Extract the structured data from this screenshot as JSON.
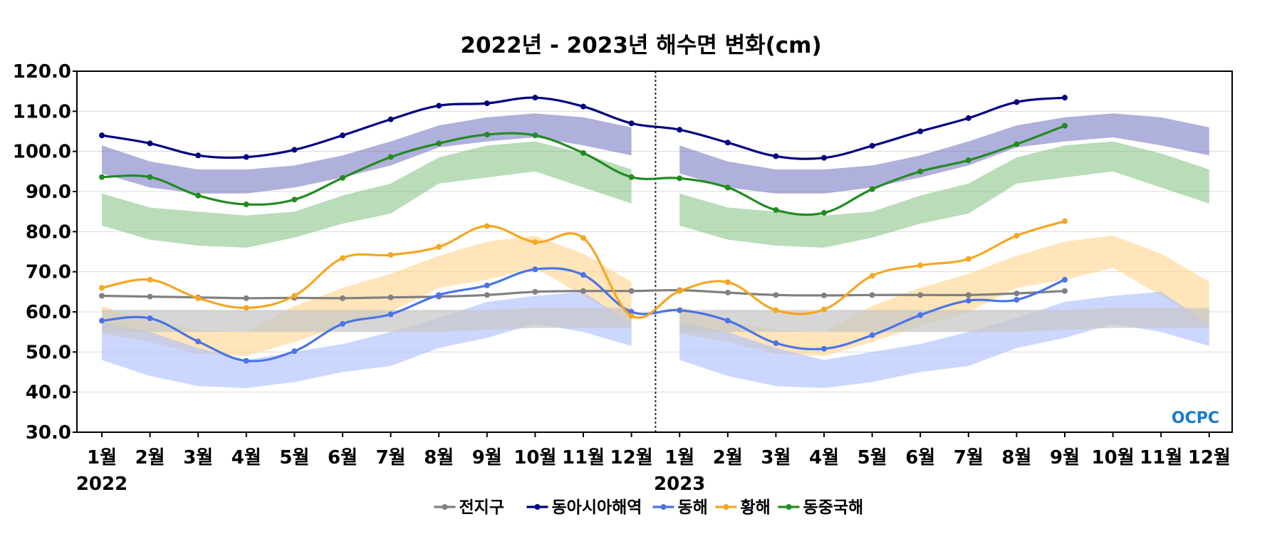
{
  "chart_data": {
    "type": "line",
    "title": "2022년 - 2023년 해수면 변화(cm)",
    "ylim": [
      30,
      120
    ],
    "yticks": [
      "30.0",
      "40.0",
      "50.0",
      "60.0",
      "70.0",
      "80.0",
      "90.0",
      "100.0",
      "110.0",
      "120.0"
    ],
    "categories": [
      "1월",
      "2월",
      "3월",
      "4월",
      "5월",
      "6월",
      "7월",
      "8월",
      "9월",
      "10월",
      "11월",
      "12월",
      "1월",
      "2월",
      "3월",
      "4월",
      "5월",
      "6월",
      "7월",
      "8월",
      "9월",
      "10월",
      "11월",
      "12월"
    ],
    "years": [
      {
        "label": "2022",
        "index": 0
      },
      {
        "label": "2023",
        "index": 12
      }
    ],
    "divider_after_index": 11,
    "grid": "horizontal",
    "legend_position": "bottom",
    "logo": "OCPC",
    "series": [
      {
        "name": "전지구",
        "color": "#808080",
        "values": [
          64.0,
          63.8,
          63.6,
          63.4,
          63.5,
          63.4,
          63.6,
          63.8,
          64.2,
          65.0,
          65.2,
          65.2,
          65.4,
          64.8,
          64.2,
          64.1,
          64.2,
          64.2,
          64.2,
          64.6,
          65.2,
          null,
          null,
          null
        ]
      },
      {
        "name": "동아시아해역",
        "color": "#000080",
        "values": [
          104.0,
          102.0,
          99.0,
          98.6,
          100.4,
          104.0,
          108.0,
          111.4,
          112.0,
          113.4,
          111.2,
          107.0,
          105.4,
          102.2,
          98.8,
          98.4,
          101.4,
          105.0,
          108.3,
          112.3,
          113.4,
          null,
          null,
          null
        ]
      },
      {
        "name": "동해",
        "color": "#4a74e6",
        "values": [
          57.8,
          58.4,
          52.6,
          47.8,
          50.2,
          57.0,
          59.4,
          64.2,
          66.6,
          70.6,
          69.2,
          60.0,
          60.4,
          57.8,
          52.2,
          50.8,
          54.2,
          59.2,
          62.8,
          63.0,
          68.0,
          null,
          null,
          null
        ]
      },
      {
        "name": "황해",
        "color": "#f5a623",
        "values": [
          66.0,
          68.0,
          63.4,
          61.0,
          64.0,
          73.4,
          74.2,
          76.2,
          81.4,
          77.4,
          78.4,
          59.0,
          65.2,
          67.4,
          60.4,
          60.6,
          69.0,
          71.6,
          73.2,
          79.0,
          82.6,
          null,
          null,
          null
        ]
      },
      {
        "name": "동중국해",
        "color": "#228b22",
        "values": [
          93.6,
          93.6,
          89.0,
          86.8,
          88.0,
          93.4,
          98.6,
          102.0,
          104.2,
          104.0,
          99.6,
          93.6,
          93.3,
          91.0,
          85.4,
          84.7,
          90.6,
          95.0,
          97.8,
          101.8,
          106.4,
          null,
          null,
          null
        ]
      }
    ],
    "bands": [
      {
        "series": "동아시아해역",
        "color": "#7070c0",
        "opacity": 0.55,
        "lower": [
          94.5,
          91.0,
          89.5,
          89.5,
          91.0,
          93.5,
          96.5,
          101.0,
          102.5,
          103.5,
          101.5,
          99.0
        ],
        "upper": [
          101.5,
          97.5,
          95.5,
          95.5,
          96.5,
          99.0,
          102.5,
          106.5,
          108.5,
          109.5,
          108.5,
          106.0
        ]
      },
      {
        "series": "동중국해",
        "color": "#80c080",
        "opacity": 0.55,
        "lower": [
          81.5,
          78.0,
          76.5,
          76.0,
          78.5,
          82.0,
          84.5,
          92.0,
          93.5,
          95.0,
          91.0,
          87.0
        ],
        "upper": [
          89.5,
          86.0,
          85.0,
          84.0,
          85.0,
          89.0,
          92.0,
          98.5,
          101.5,
          102.5,
          99.5,
          95.5
        ]
      },
      {
        "series": "황해",
        "color": "#ffd080",
        "opacity": 0.55,
        "lower": [
          54.5,
          52.5,
          49.5,
          49.0,
          52.5,
          56.5,
          60.0,
          66.0,
          68.0,
          71.0,
          64.0,
          57.0
        ],
        "upper": [
          61.5,
          57.5,
          55.5,
          55.0,
          61.5,
          66.0,
          69.5,
          74.0,
          77.5,
          79.0,
          74.5,
          67.5
        ]
      },
      {
        "series": "동해",
        "color": "#a8bcff",
        "opacity": 0.6,
        "lower": [
          48.0,
          44.0,
          41.5,
          41.0,
          42.5,
          45.0,
          46.5,
          51.0,
          53.5,
          57.0,
          55.0,
          51.5
        ],
        "upper": [
          57.5,
          55.0,
          51.0,
          48.0,
          50.0,
          52.0,
          55.0,
          58.5,
          62.5,
          64.0,
          65.0,
          57.0
        ]
      },
      {
        "series": "전지구",
        "color": "#c8c8c8",
        "opacity": 0.75,
        "lower": [
          55.0,
          55.0,
          55.0,
          55.0,
          55.0,
          55.0,
          55.0,
          55.0,
          55.5,
          56.0,
          56.0,
          56.0
        ],
        "upper": [
          60.5,
          60.5,
          60.5,
          60.5,
          60.5,
          60.5,
          60.5,
          60.5,
          60.5,
          61.0,
          61.0,
          61.0
        ]
      }
    ]
  }
}
